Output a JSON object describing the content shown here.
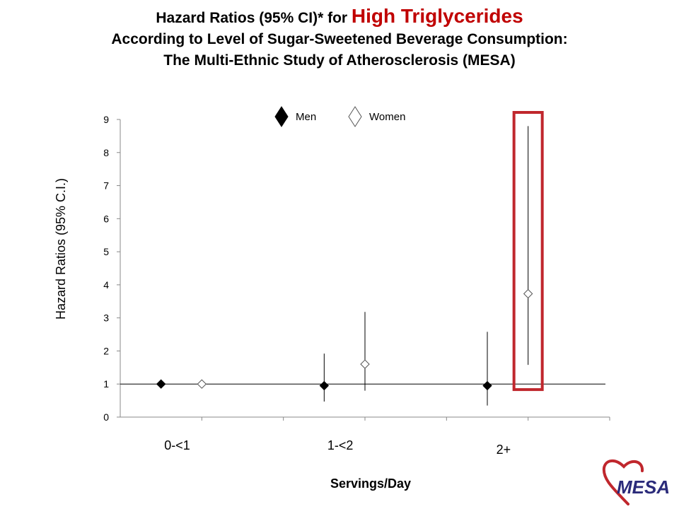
{
  "header": {
    "title_prefix": "Hazard Ratios (95% CI)* for ",
    "title_highlight": "High Triglycerides",
    "subtitle_line2": "According to Level of Sugar-Sweetened Beverage Consumption:",
    "subtitle_line3": "The Multi-Ethnic Study of Atherosclerosis (MESA)"
  },
  "logo": {
    "text": "MESA"
  },
  "chart_data": {
    "type": "scatter",
    "title": "Hazard Ratios (95% CI)* for High Triglycerides According to Level of Sugar-Sweetened Beverage Consumption: The Multi-Ethnic Study of Atherosclerosis (MESA)",
    "xlabel": "Servings/Day",
    "ylabel": "Hazard Ratios (95% C.I.)",
    "ylim": [
      0,
      9
    ],
    "yticks": [
      "0",
      "1",
      "2",
      "3",
      "4",
      "5",
      "6",
      "7",
      "8",
      "9"
    ],
    "categories": [
      "0-<1",
      "1-<2",
      "2+"
    ],
    "reference_line": 1,
    "grid": false,
    "legend_position": "top-center",
    "highlight": {
      "category": "2+",
      "series": "Women",
      "color": "#c0272d"
    },
    "series": [
      {
        "name": "Men",
        "marker": "filled-diamond",
        "points": [
          {
            "category": "0-<1",
            "hr": 1.0,
            "lower": null,
            "upper": null
          },
          {
            "category": "1-<2",
            "hr": 0.95,
            "lower": 0.47,
            "upper": 1.92
          },
          {
            "category": "2+",
            "hr": 0.95,
            "lower": 0.35,
            "upper": 2.58
          }
        ]
      },
      {
        "name": "Women",
        "marker": "open-diamond",
        "points": [
          {
            "category": "0-<1",
            "hr": 1.0,
            "lower": null,
            "upper": null
          },
          {
            "category": "1-<2",
            "hr": 1.6,
            "lower": 0.8,
            "upper": 3.18
          },
          {
            "category": "2+",
            "hr": 3.73,
            "lower": 1.58,
            "upper": 8.8
          }
        ]
      }
    ]
  }
}
